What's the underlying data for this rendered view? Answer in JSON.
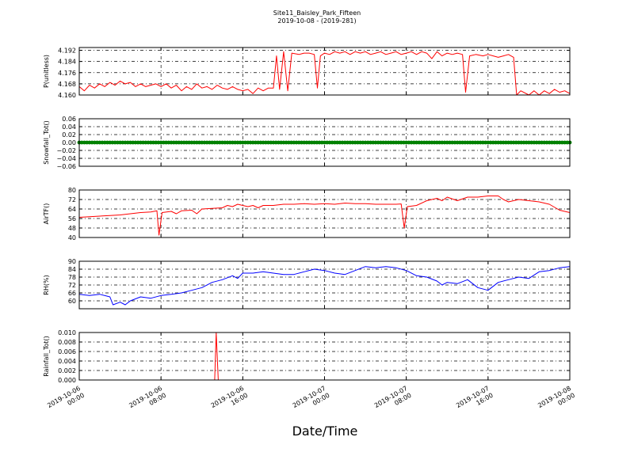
{
  "chart_data": {
    "title": "Site11_Baisley_Park_Fifteen",
    "subtitle": "2019-10-08 - (2019-281)",
    "xlabel": "Date/Time",
    "x_ticks": [
      "2019-10-06 00:00",
      "2019-10-06 08:00",
      "2019-10-06 16:00",
      "2019-10-07 00:00",
      "2019-10-07 08:00",
      "2019-10-07 16:00",
      "2019-10-08 00:00"
    ],
    "x_range_hours": [
      0,
      48
    ],
    "grid": true,
    "panels": [
      {
        "type": "line",
        "ylabel": "P(unitless)",
        "ylim": [
          4.16,
          4.194
        ],
        "yticks": [
          "4.160",
          "4.168",
          "4.176",
          "4.184",
          "4.192"
        ],
        "color": "#ff0000",
        "series": [
          {
            "values": [
              [
                0,
                4.166
              ],
              [
                0.5,
                4.163
              ],
              [
                1,
                4.167
              ],
              [
                1.5,
                4.165
              ],
              [
                2,
                4.168
              ],
              [
                2.5,
                4.166
              ],
              [
                3,
                4.169
              ],
              [
                3.5,
                4.167
              ],
              [
                4,
                4.17
              ],
              [
                4.5,
                4.168
              ],
              [
                5,
                4.169
              ],
              [
                5.5,
                4.166
              ],
              [
                6,
                4.168
              ],
              [
                6.5,
                4.166
              ],
              [
                7,
                4.167
              ],
              [
                7.5,
                4.168
              ],
              [
                8,
                4.166
              ],
              [
                8.5,
                4.168
              ],
              [
                9,
                4.165
              ],
              [
                9.5,
                4.167
              ],
              [
                10,
                4.163
              ],
              [
                10.5,
                4.166
              ],
              [
                11,
                4.164
              ],
              [
                11.5,
                4.168
              ],
              [
                12,
                4.165
              ],
              [
                12.5,
                4.166
              ],
              [
                13,
                4.164
              ],
              [
                13.5,
                4.167
              ],
              [
                14,
                4.165
              ],
              [
                14.5,
                4.164
              ],
              [
                15,
                4.166
              ],
              [
                15.5,
                4.164
              ],
              [
                16,
                4.163
              ],
              [
                16.5,
                4.164
              ],
              [
                17,
                4.161
              ],
              [
                17.5,
                4.165
              ],
              [
                18,
                4.163
              ],
              [
                18.5,
                4.165
              ],
              [
                19,
                4.165
              ],
              [
                19.3,
                4.188
              ],
              [
                19.6,
                4.164
              ],
              [
                20,
                4.191
              ],
              [
                20.4,
                4.163
              ],
              [
                20.8,
                4.19
              ],
              [
                21.5,
                4.189
              ],
              [
                22,
                4.19
              ],
              [
                22.5,
                4.19
              ],
              [
                23,
                4.189
              ],
              [
                23.3,
                4.165
              ],
              [
                23.6,
                4.188
              ],
              [
                24,
                4.19
              ],
              [
                24.5,
                4.189
              ],
              [
                25,
                4.191
              ],
              [
                25.5,
                4.19
              ],
              [
                26,
                4.191
              ],
              [
                26.5,
                4.189
              ],
              [
                27,
                4.191
              ],
              [
                27.5,
                4.19
              ],
              [
                28,
                4.191
              ],
              [
                28.5,
                4.189
              ],
              [
                29,
                4.19
              ],
              [
                29.5,
                4.191
              ],
              [
                30,
                4.189
              ],
              [
                30.5,
                4.19
              ],
              [
                31,
                4.191
              ],
              [
                31.5,
                4.189
              ],
              [
                32,
                4.19
              ],
              [
                32.5,
                4.191
              ],
              [
                33,
                4.189
              ],
              [
                33.5,
                4.191
              ],
              [
                34,
                4.19
              ],
              [
                34.5,
                4.186
              ],
              [
                35,
                4.191
              ],
              [
                35.5,
                4.188
              ],
              [
                36,
                4.19
              ],
              [
                36.5,
                4.189
              ],
              [
                37,
                4.19
              ],
              [
                37.5,
                4.189
              ],
              [
                37.8,
                4.162
              ],
              [
                38.2,
                4.188
              ],
              [
                38.8,
                4.189
              ],
              [
                39.5,
                4.188
              ],
              [
                40,
                4.189
              ],
              [
                40.5,
                4.188
              ],
              [
                41,
                4.187
              ],
              [
                41.5,
                4.188
              ],
              [
                42,
                4.189
              ],
              [
                42.5,
                4.187
              ],
              [
                42.8,
                4.16
              ],
              [
                43.2,
                4.163
              ],
              [
                44,
                4.16
              ],
              [
                44.5,
                4.163
              ],
              [
                45,
                4.16
              ],
              [
                45.5,
                4.163
              ],
              [
                46,
                4.161
              ],
              [
                46.5,
                4.164
              ],
              [
                47,
                4.162
              ],
              [
                47.5,
                4.163
              ],
              [
                48,
                4.161
              ]
            ]
          }
        ]
      },
      {
        "type": "scatter",
        "ylabel": "Snowfall_Tot()",
        "ylim": [
          -0.06,
          0.06
        ],
        "yticks": [
          "−0.06",
          "−0.04",
          "−0.02",
          "0.00",
          "0.02",
          "0.04",
          "0.06"
        ],
        "color": "#008000",
        "series": [
          {
            "constant": 0.0,
            "x_step_hours": 0.25
          }
        ]
      },
      {
        "type": "line",
        "ylabel": "AirTF()",
        "ylim": [
          40,
          80
        ],
        "yticks": [
          "40",
          "48",
          "56",
          "64",
          "72",
          "80"
        ],
        "color": "#ff0000",
        "series": [
          {
            "values": [
              [
                0,
                57
              ],
              [
                1,
                57.5
              ],
              [
                2,
                58
              ],
              [
                3,
                58.5
              ],
              [
                4,
                59
              ],
              [
                5,
                60
              ],
              [
                6,
                61
              ],
              [
                7,
                61.5
              ],
              [
                7.6,
                62.5
              ],
              [
                7.8,
                42
              ],
              [
                8.1,
                61
              ],
              [
                9,
                62
              ],
              [
                9.5,
                60
              ],
              [
                10,
                62.5
              ],
              [
                11,
                63
              ],
              [
                11.5,
                60
              ],
              [
                12,
                64
              ],
              [
                13,
                64.5
              ],
              [
                14,
                65
              ],
              [
                14.5,
                67
              ],
              [
                15,
                66
              ],
              [
                15.5,
                68
              ],
              [
                16,
                67
              ],
              [
                16.5,
                66
              ],
              [
                17,
                67
              ],
              [
                17.5,
                65
              ],
              [
                18,
                67
              ],
              [
                19,
                67
              ],
              [
                20,
                68
              ],
              [
                21,
                68
              ],
              [
                22,
                68.5
              ],
              [
                23,
                68
              ],
              [
                24,
                68.5
              ],
              [
                25,
                68
              ],
              [
                26,
                69
              ],
              [
                27,
                68.5
              ],
              [
                28,
                68.5
              ],
              [
                29,
                68
              ],
              [
                30,
                68
              ],
              [
                31,
                68
              ],
              [
                31.5,
                68.3
              ],
              [
                31.8,
                48
              ],
              [
                32.1,
                66
              ],
              [
                33,
                67
              ],
              [
                34,
                71
              ],
              [
                35,
                73
              ],
              [
                35.5,
                71
              ],
              [
                36,
                74
              ],
              [
                37,
                71
              ],
              [
                38,
                74
              ],
              [
                39,
                74
              ],
              [
                40,
                75
              ],
              [
                41,
                75
              ],
              [
                41.5,
                72
              ],
              [
                42,
                70
              ],
              [
                43,
                72
              ],
              [
                44,
                71
              ],
              [
                45,
                70
              ],
              [
                46,
                68
              ],
              [
                47,
                63
              ],
              [
                48,
                61
              ]
            ]
          }
        ]
      },
      {
        "type": "line",
        "ylabel": "RH(%)",
        "ylim": [
          54,
          90
        ],
        "yticks": [
          "60",
          "66",
          "72",
          "78",
          "84",
          "90"
        ],
        "color": "#0000ff",
        "series": [
          {
            "values": [
              [
                0,
                65
              ],
              [
                1,
                64
              ],
              [
                2,
                65
              ],
              [
                3,
                63
              ],
              [
                3.3,
                57
              ],
              [
                4,
                59
              ],
              [
                4.5,
                57
              ],
              [
                5,
                60
              ],
              [
                6,
                63
              ],
              [
                7,
                62
              ],
              [
                8,
                64
              ],
              [
                9,
                65
              ],
              [
                10,
                66
              ],
              [
                11,
                68
              ],
              [
                12,
                70
              ],
              [
                13,
                74
              ],
              [
                14,
                76
              ],
              [
                15,
                79
              ],
              [
                15.5,
                77
              ],
              [
                16,
                81
              ],
              [
                17,
                81
              ],
              [
                18,
                82
              ],
              [
                19,
                81
              ],
              [
                20,
                80
              ],
              [
                21,
                80
              ],
              [
                22,
                82
              ],
              [
                23,
                84
              ],
              [
                24,
                83
              ],
              [
                25,
                81
              ],
              [
                26,
                80
              ],
              [
                27,
                83
              ],
              [
                28,
                86
              ],
              [
                29,
                85
              ],
              [
                30,
                86
              ],
              [
                31,
                85
              ],
              [
                32,
                83
              ],
              [
                33,
                79
              ],
              [
                34,
                78
              ],
              [
                35,
                75
              ],
              [
                35.5,
                72
              ],
              [
                36,
                74
              ],
              [
                37,
                73
              ],
              [
                38,
                76
              ],
              [
                39,
                70
              ],
              [
                40,
                68
              ],
              [
                41,
                74
              ],
              [
                42,
                76
              ],
              [
                43,
                78
              ],
              [
                44,
                77
              ],
              [
                45,
                82
              ],
              [
                46,
                83
              ],
              [
                47,
                85
              ],
              [
                48,
                86
              ]
            ]
          }
        ]
      },
      {
        "type": "line",
        "ylabel": "Rainfall_Tot()",
        "ylim": [
          0,
          0.01
        ],
        "yticks": [
          "0.000",
          "0.002",
          "0.004",
          "0.006",
          "0.008",
          "0.010"
        ],
        "color": "#ff0000",
        "series": [
          {
            "values": [
              [
                0,
                0
              ],
              [
                13.25,
                0
              ],
              [
                13.4,
                0.01
              ],
              [
                13.6,
                0
              ],
              [
                48,
                0
              ]
            ]
          }
        ]
      }
    ]
  }
}
